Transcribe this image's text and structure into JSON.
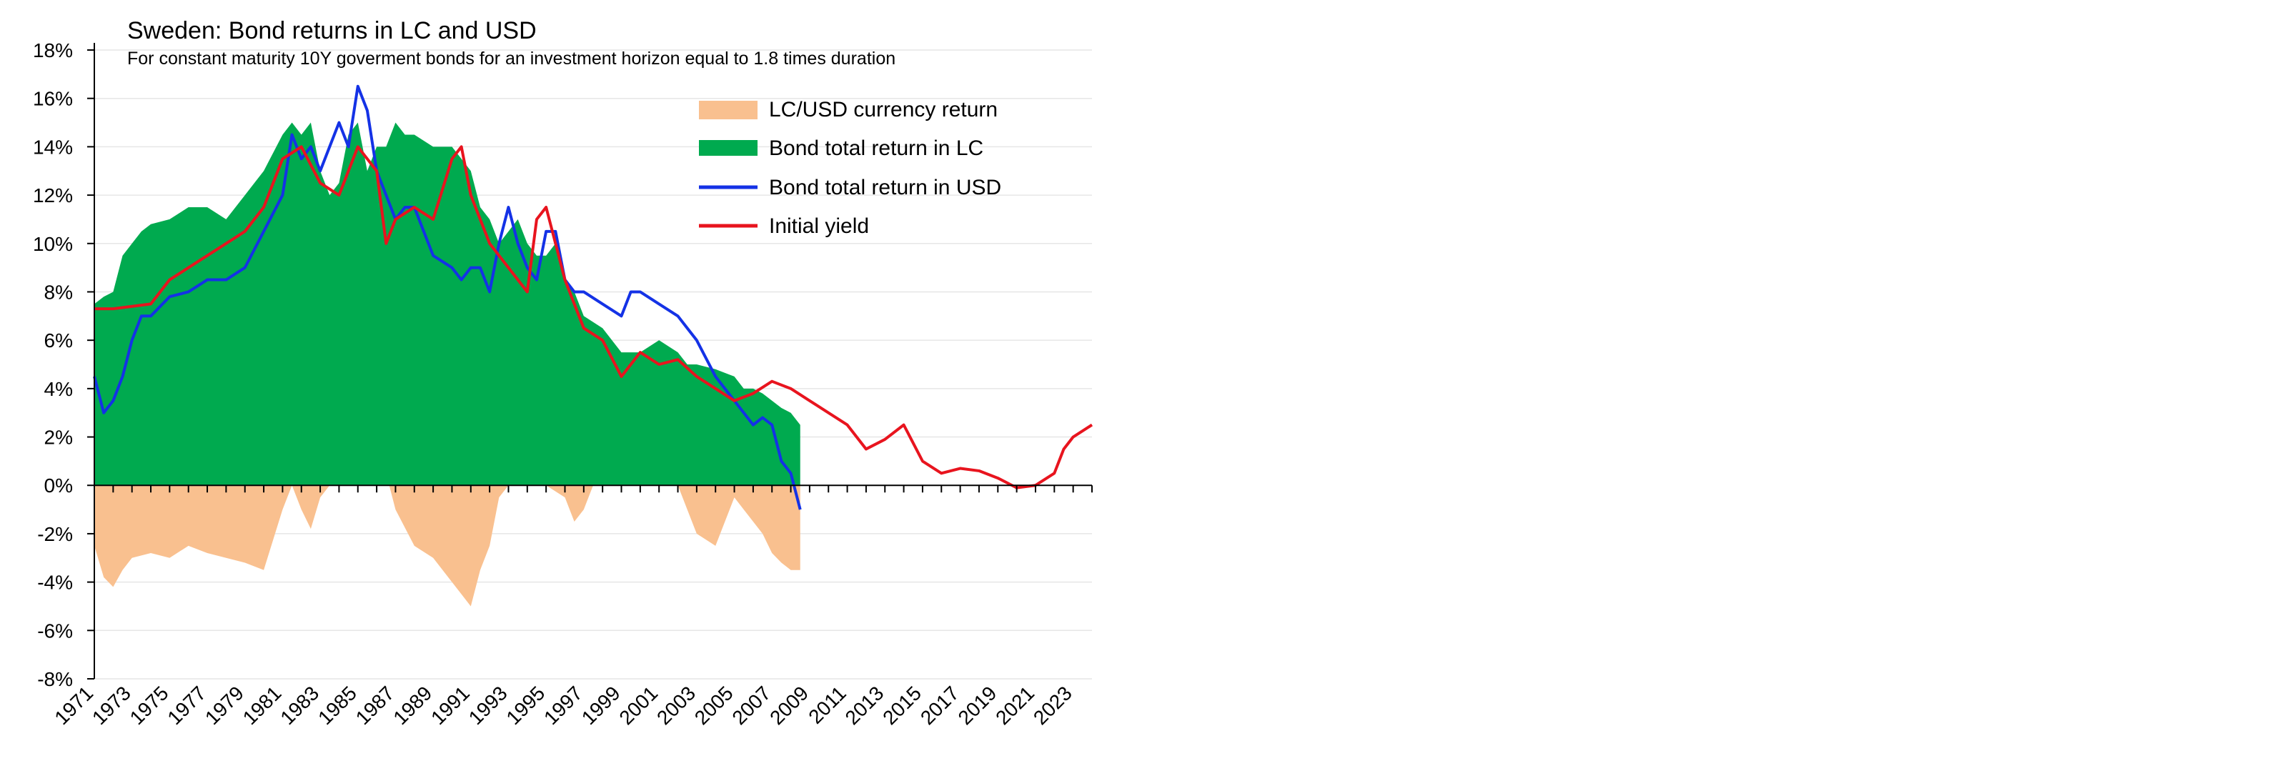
{
  "chart_data": {
    "type": "area",
    "title": "Sweden: Bond returns in LC and USD",
    "subtitle": "For constant maturity 10Y goverment bonds for an investment horizon equal to 1.8 times duration",
    "xlabel": "",
    "ylabel": "",
    "ylim": [
      -8,
      18
    ],
    "xlim": [
      1971,
      2024
    ],
    "yticks": [
      "18%",
      "16%",
      "14%",
      "12%",
      "10%",
      "8%",
      "6%",
      "4%",
      "2%",
      "0%",
      "-2%",
      "-4%",
      "-6%",
      "-8%"
    ],
    "ytick_values": [
      18,
      16,
      14,
      12,
      10,
      8,
      6,
      4,
      2,
      0,
      -2,
      -4,
      -6,
      -8
    ],
    "xticks": [
      "1971",
      "1973",
      "1975",
      "1977",
      "1979",
      "1981",
      "1983",
      "1985",
      "1987",
      "1989",
      "1991",
      "1993",
      "1995",
      "1997",
      "1999",
      "2001",
      "2003",
      "2005",
      "2007",
      "2009",
      "2011",
      "2013",
      "2015",
      "2017",
      "2019",
      "2021",
      "2023"
    ],
    "legend_position": "top-right",
    "grid": true,
    "series": [
      {
        "name": "LC/USD currency return",
        "kind": "area",
        "color": "#F9C08F",
        "x": [
          1971,
          1971.5,
          1972,
          1972.5,
          1973,
          1974,
          1975,
          1976,
          1977,
          1978,
          1979,
          1980,
          1980.6,
          1981,
          1981.5,
          1982,
          1982.5,
          1983,
          1983.5,
          1984,
          1984.5,
          1985,
          1985.5,
          1986,
          1986.5,
          1987,
          1988,
          1989,
          1990,
          1990.5,
          1991,
          1991.5,
          1992,
          1992.5,
          1993,
          1993.5,
          1994,
          1995,
          1996,
          1996.5,
          1997,
          1997.5,
          1998,
          1999,
          2000,
          2000.5,
          2001,
          2001.5,
          2002,
          2002.5,
          2003,
          2004,
          2004.5,
          2005,
          2005.5,
          2006,
          2006.5,
          2007,
          2007.5,
          2008,
          2008.5
        ],
        "values": [
          -2.5,
          -3.8,
          -4.2,
          -3.5,
          -3.0,
          -2.8,
          -3.0,
          -2.5,
          -2.8,
          -3.0,
          -3.2,
          -3.5,
          -2.0,
          -1.0,
          0.0,
          -1.0,
          -1.8,
          -0.5,
          0.0,
          0.8,
          1.5,
          1.5,
          2.5,
          1.5,
          0.5,
          -1.0,
          -2.5,
          -3.0,
          -4.0,
          -4.5,
          -5.0,
          -3.5,
          -2.5,
          -0.5,
          0.0,
          0.8,
          1.0,
          0.0,
          -0.5,
          -1.5,
          -1.0,
          0.0,
          1.0,
          1.5,
          2.5,
          2.0,
          1.5,
          1.0,
          0.0,
          -1.0,
          -2.0,
          -2.5,
          -1.5,
          -0.5,
          -1.0,
          -1.5,
          -2.0,
          -2.8,
          -3.2,
          -3.5,
          -3.5
        ]
      },
      {
        "name": "Bond total return in LC",
        "kind": "area",
        "color": "#00AA4F",
        "x": [
          1971,
          1971.5,
          1972,
          1972.5,
          1973,
          1973.5,
          1974,
          1975,
          1976,
          1977,
          1978,
          1979,
          1980,
          1981,
          1981.5,
          1982,
          1982.5,
          1983,
          1983.5,
          1984,
          1984.5,
          1985,
          1985.5,
          1986,
          1986.5,
          1987,
          1987.5,
          1988,
          1989,
          1990,
          1990.5,
          1991,
          1991.5,
          1992,
          1992.5,
          1993,
          1993.5,
          1994,
          1994.5,
          1995,
          1995.5,
          1996,
          1996.5,
          1997,
          1998,
          1999,
          1999.5,
          2000,
          2001,
          2002,
          2002.5,
          2003,
          2004,
          2005,
          2005.5,
          2006,
          2006.5,
          2007,
          2007.5,
          2008,
          2008.5
        ],
        "values": [
          7.5,
          7.8,
          8.0,
          9.5,
          10.0,
          10.5,
          10.8,
          11.0,
          11.5,
          11.5,
          11.0,
          12.0,
          13.0,
          14.5,
          15.0,
          14.5,
          15.0,
          13.0,
          12.0,
          12.5,
          14.5,
          15.0,
          13.0,
          14.0,
          14.0,
          15.0,
          14.5,
          14.5,
          14.0,
          14.0,
          13.5,
          13.0,
          11.5,
          11.0,
          10.0,
          10.5,
          11.0,
          10.0,
          9.5,
          9.5,
          10.0,
          8.5,
          8.0,
          7.0,
          6.5,
          5.5,
          5.5,
          5.5,
          6.0,
          5.5,
          5.0,
          5.0,
          4.8,
          4.5,
          4.0,
          4.0,
          3.8,
          3.5,
          3.2,
          3.0,
          2.5
        ]
      },
      {
        "name": "Bond total return in USD",
        "kind": "line",
        "color": "#1432E6",
        "x": [
          1971,
          1971.5,
          1972,
          1972.5,
          1973,
          1973.5,
          1974,
          1975,
          1976,
          1977,
          1978,
          1979,
          1980,
          1981,
          1981.5,
          1982,
          1982.5,
          1983,
          1983.5,
          1984,
          1984.5,
          1985,
          1985.5,
          1986,
          1986.5,
          1987,
          1987.5,
          1988,
          1989,
          1990,
          1990.5,
          1991,
          1991.5,
          1992,
          1992.5,
          1993,
          1993.5,
          1994,
          1994.5,
          1995,
          1995.5,
          1996,
          1996.5,
          1997,
          1998,
          1999,
          1999.5,
          2000,
          2001,
          2002,
          2002.5,
          2003,
          2004,
          2005,
          2005.5,
          2006,
          2006.5,
          2007,
          2007.5,
          2008,
          2008.5
        ],
        "values": [
          4.5,
          3.0,
          3.5,
          4.5,
          6.0,
          7.0,
          7.0,
          7.8,
          8.0,
          8.5,
          8.5,
          9.0,
          10.5,
          12.0,
          14.5,
          13.5,
          14.0,
          13.0,
          14.0,
          15.0,
          14.0,
          16.5,
          15.5,
          13.0,
          12.0,
          11.0,
          11.5,
          11.5,
          9.5,
          9.0,
          8.5,
          9.0,
          9.0,
          8.0,
          10.0,
          11.5,
          10.0,
          9.0,
          8.5,
          10.5,
          10.5,
          8.5,
          8.0,
          8.0,
          7.5,
          7.0,
          8.0,
          8.0,
          7.5,
          7.0,
          6.5,
          6.0,
          4.5,
          3.5,
          3.0,
          2.5,
          2.8,
          2.5,
          1.0,
          0.5,
          -1.0
        ]
      },
      {
        "name": "Initial yield",
        "kind": "line",
        "color": "#E8141E",
        "x": [
          1971,
          1972,
          1973,
          1974,
          1975,
          1976,
          1977,
          1978,
          1979,
          1980,
          1981,
          1982,
          1983,
          1984,
          1985,
          1986,
          1986.5,
          1987,
          1988,
          1989,
          1990,
          1990.5,
          1991,
          1992,
          1993,
          1994,
          1994.5,
          1995,
          1995.5,
          1996,
          1997,
          1998,
          1999,
          2000,
          2001,
          2002,
          2003,
          2004,
          2005,
          2006,
          2007,
          2008,
          2009,
          2010,
          2011,
          2012,
          2013,
          2014,
          2015,
          2016,
          2017,
          2018,
          2019,
          2020,
          2021,
          2022,
          2022.5,
          2023,
          2024
        ],
        "values": [
          7.3,
          7.3,
          7.4,
          7.5,
          8.5,
          9.0,
          9.5,
          10.0,
          10.5,
          11.5,
          13.5,
          14.0,
          12.5,
          12.0,
          14.0,
          13.0,
          10.0,
          11.0,
          11.5,
          11.0,
          13.5,
          14.0,
          12.0,
          10.0,
          9.0,
          8.0,
          11.0,
          11.5,
          10.0,
          8.5,
          6.5,
          6.0,
          4.5,
          5.5,
          5.0,
          5.2,
          4.5,
          4.0,
          3.5,
          3.8,
          4.3,
          4.0,
          3.5,
          3.0,
          2.5,
          1.5,
          1.9,
          2.5,
          1.0,
          0.5,
          0.7,
          0.6,
          0.3,
          -0.1,
          0.0,
          0.5,
          1.5,
          2.0,
          2.5
        ]
      }
    ]
  }
}
